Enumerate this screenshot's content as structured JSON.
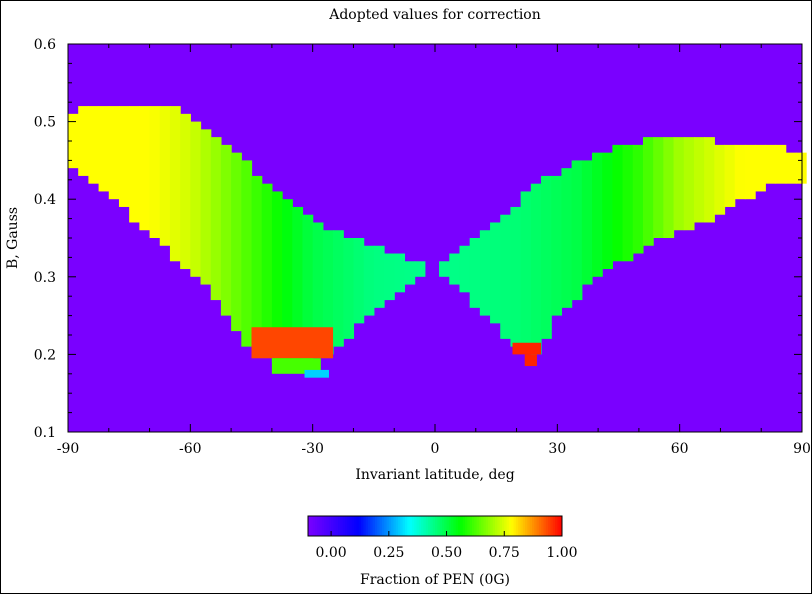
{
  "chart_data": {
    "type": "heatmap",
    "title": "Adopted values for correction",
    "xlabel": "Invariant latitude, deg",
    "ylabel": "B, Gauss",
    "xlim": [
      -90,
      90
    ],
    "ylim": [
      0.1,
      0.6
    ],
    "x_ticks": [
      -90,
      -60,
      -30,
      0,
      30,
      60,
      90
    ],
    "x_tick_labels": [
      "-90",
      "-60",
      "-30",
      "0",
      "30",
      "60",
      "90"
    ],
    "y_ticks": [
      0.1,
      0.2,
      0.3,
      0.4,
      0.5,
      0.6
    ],
    "y_tick_labels": [
      "0.1",
      "0.2",
      "0.3",
      "0.4",
      "0.5",
      "0.6"
    ],
    "background_color": "#7a00ff",
    "grid": false,
    "value_range": [
      -0.1,
      1.0
    ],
    "regions": [
      {
        "name": "southern-lobe",
        "upper": [
          [
            -90,
            0.51
          ],
          [
            -84,
            0.52
          ],
          [
            -65,
            0.52
          ],
          [
            -55,
            0.49
          ],
          [
            -45,
            0.44
          ],
          [
            -35,
            0.39
          ],
          [
            -25,
            0.36
          ],
          [
            -15,
            0.34
          ],
          [
            -5,
            0.32
          ],
          [
            -1,
            0.31
          ]
        ],
        "lower": [
          [
            -90,
            0.44
          ],
          [
            -84,
            0.42
          ],
          [
            -75,
            0.38
          ],
          [
            -65,
            0.33
          ],
          [
            -55,
            0.28
          ],
          [
            -50,
            0.24
          ],
          [
            -45,
            0.2
          ],
          [
            -35,
            0.19
          ],
          [
            -25,
            0.2
          ],
          [
            -20,
            0.23
          ],
          [
            -10,
            0.28
          ],
          [
            -1,
            0.31
          ]
        ],
        "fraction_profile": [
          [
            -90,
            0.78
          ],
          [
            -70,
            0.78
          ],
          [
            -60,
            0.74
          ],
          [
            -45,
            0.62
          ],
          [
            -30,
            0.5
          ],
          [
            -15,
            0.45
          ],
          [
            0,
            0.44
          ]
        ]
      },
      {
        "name": "northern-lobe",
        "upper": [
          [
            1,
            0.31
          ],
          [
            5,
            0.33
          ],
          [
            15,
            0.37
          ],
          [
            25,
            0.42
          ],
          [
            40,
            0.46
          ],
          [
            55,
            0.48
          ],
          [
            82,
            0.47
          ],
          [
            90,
            0.46
          ]
        ],
        "lower": [
          [
            1,
            0.31
          ],
          [
            10,
            0.26
          ],
          [
            20,
            0.21
          ],
          [
            25,
            0.2
          ],
          [
            30,
            0.25
          ],
          [
            40,
            0.3
          ],
          [
            55,
            0.35
          ],
          [
            70,
            0.38
          ],
          [
            82,
            0.42
          ],
          [
            90,
            0.42
          ]
        ],
        "fraction_profile": [
          [
            0,
            0.44
          ],
          [
            20,
            0.46
          ],
          [
            35,
            0.5
          ],
          [
            50,
            0.6
          ],
          [
            60,
            0.7
          ],
          [
            75,
            0.78
          ],
          [
            90,
            0.78
          ]
        ]
      }
    ],
    "hotspots": [
      {
        "x_range": [
          -45,
          -25
        ],
        "y_range": [
          0.195,
          0.235
        ],
        "value": 0.94
      },
      {
        "x_range": [
          -40,
          -28
        ],
        "y_range": [
          0.175,
          0.195
        ],
        "value": 0.62
      },
      {
        "x_range": [
          -32,
          -26
        ],
        "y_range": [
          0.17,
          0.18
        ],
        "value": 0.3
      },
      {
        "x_range": [
          19,
          26
        ],
        "y_range": [
          0.2,
          0.215
        ],
        "value": 0.97
      },
      {
        "x_range": [
          22,
          25
        ],
        "y_range": [
          0.185,
          0.2
        ],
        "value": 0.97
      }
    ],
    "colorbar": {
      "label": "Fraction of PEN (0G)",
      "range": [
        -0.1,
        1.0
      ],
      "ticks": [
        0.0,
        0.25,
        0.5,
        0.75,
        1.0
      ],
      "tick_labels": [
        "0.00",
        "0.25",
        "0.50",
        "0.75",
        "1.00"
      ],
      "colormap": [
        "#7a00ff",
        "#0000ff",
        "#00ffff",
        "#00ff00",
        "#ffff00",
        "#ff0000"
      ]
    }
  }
}
